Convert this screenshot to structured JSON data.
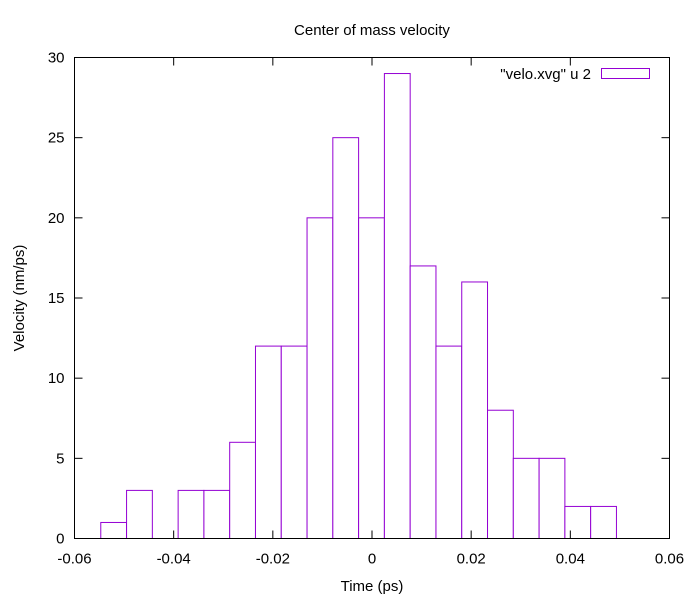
{
  "chart_data": {
    "type": "bar",
    "title": "Center of mass velocity",
    "xlabel": "Time (ps)",
    "ylabel": "Velocity (nm/ps)",
    "xlim": [
      -0.06,
      0.06
    ],
    "ylim": [
      0,
      30
    ],
    "xticks": [
      -0.06,
      -0.04,
      -0.02,
      0,
      0.02,
      0.04,
      0.06
    ],
    "xtick_labels": [
      "-0.06",
      "-0.04",
      "-0.02",
      "0",
      "0.02",
      "0.04",
      "0.06"
    ],
    "yticks": [
      0,
      5,
      10,
      15,
      20,
      25,
      30
    ],
    "ytick_labels": [
      "0",
      "5",
      "10",
      "15",
      "20",
      "25",
      "30"
    ],
    "bin_width": 0.0052,
    "grid": false,
    "legend_position": "top-right",
    "bar_color": "#9400d3",
    "series": [
      {
        "name": "\"velo.xvg\" u 2",
        "x": [
          -0.0521,
          -0.0469,
          -0.0417,
          -0.0365,
          -0.0313,
          -0.0261,
          -0.0209,
          -0.0157,
          -0.0105,
          -0.0053,
          -0.0001,
          0.0051,
          0.0103,
          0.0155,
          0.0207,
          0.0259,
          0.0311,
          0.0363,
          0.0415,
          0.0467
        ],
        "values": [
          1,
          3,
          0,
          3,
          3,
          6,
          12,
          12,
          20,
          25,
          20,
          29,
          17,
          12,
          16,
          8,
          5,
          5,
          2,
          2
        ]
      }
    ]
  }
}
